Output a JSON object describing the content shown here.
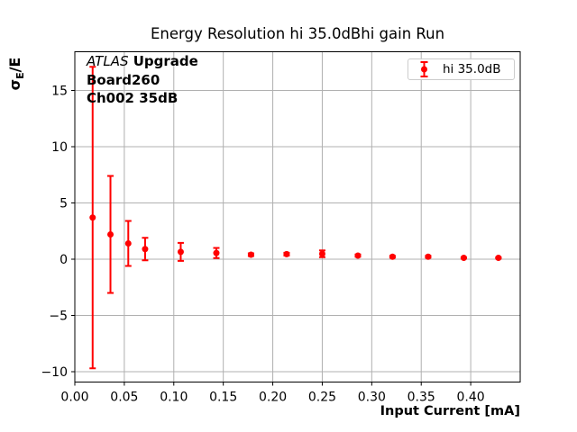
{
  "chart_data": {
    "type": "scatter",
    "title": "Energy Resolution hi 35.0dBhi gain Run",
    "xlabel": "Input Current [mA]",
    "ylabel": "σE/E",
    "ylabel_parts": {
      "sigma": "σ",
      "subscript": "E",
      "rest": "/E"
    },
    "annotation": {
      "line1_italic": "ATLAS",
      "line1_bold": "Upgrade",
      "line2": "Board260",
      "line3": "Ch002 35dB"
    },
    "legend": {
      "label": "hi 35.0dB",
      "marker": "errorbar-point",
      "position": "upper-right"
    },
    "grid": true,
    "colors": {
      "series": "#ff0000",
      "grid": "#b0b0b0",
      "axis": "#000000",
      "legend_border": "#cccccc"
    },
    "xlim": [
      0,
      0.45
    ],
    "ylim": [
      -10.92,
      18.44
    ],
    "xtick_values": [
      0.0,
      0.05,
      0.1,
      0.15,
      0.2,
      0.25,
      0.3,
      0.35,
      0.4
    ],
    "xtick_labels": [
      "0.00",
      "0.05",
      "0.10",
      "0.15",
      "0.20",
      "0.25",
      "0.30",
      "0.35",
      "0.40"
    ],
    "ytick_values": [
      15,
      10,
      5,
      0,
      -5,
      -10
    ],
    "ytick_labels": [
      "15",
      "10",
      "5",
      "0",
      "−5",
      "−10"
    ],
    "series": [
      {
        "name": "hi 35.0dB",
        "marker": "circle",
        "x": [
          0.018,
          0.036,
          0.054,
          0.071,
          0.107,
          0.143,
          0.178,
          0.214,
          0.25,
          0.286,
          0.321,
          0.357,
          0.393,
          0.428
        ],
        "y": [
          3.7,
          2.2,
          1.4,
          0.9,
          0.65,
          0.55,
          0.4,
          0.45,
          0.48,
          0.32,
          0.22,
          0.22,
          0.12,
          0.12
        ],
        "yerr": [
          13.4,
          5.2,
          2.0,
          1.0,
          0.8,
          0.45,
          0.12,
          0.12,
          0.3,
          0.1,
          0.08,
          0.08,
          0.05,
          0.05
        ]
      }
    ]
  }
}
